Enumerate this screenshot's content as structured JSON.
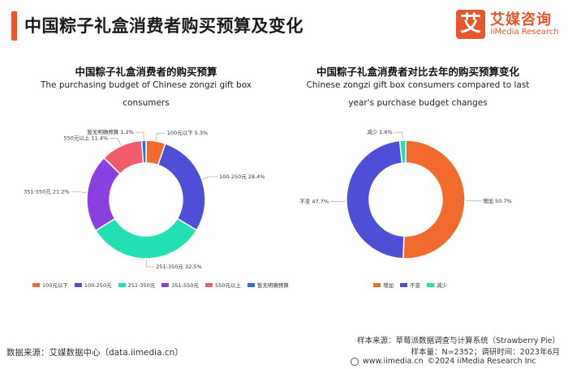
{
  "header": {
    "title": "中国粽子礼盒消费者购买预算及变化",
    "logo_glyph": "艾",
    "logo_cn": "艾媒咨询",
    "logo_en": "iiMedia Research",
    "accent": "#e8562a"
  },
  "chart_data": [
    {
      "type": "pie",
      "donut": true,
      "title": "中国粽子礼盒消费者的购买预算",
      "subtitle": "The purchasing budget of Chinese zongzi gift box consumers",
      "legend_position": "bottom",
      "slices": [
        {
          "label": "100元以下",
          "value": 5.3,
          "text": "100元以下 5.3%",
          "color": "#f26b2d"
        },
        {
          "label": "100-250元",
          "value": 28.4,
          "text": "100-250元 28.4%",
          "color": "#4e4fd6"
        },
        {
          "label": "251-350元",
          "value": 32.5,
          "text": "251-350元 32.5%",
          "color": "#23e0b4"
        },
        {
          "label": "351-550元",
          "value": 21.2,
          "text": "351-550元 21.2%",
          "color": "#8a3fe0"
        },
        {
          "label": "550元以上",
          "value": 11.4,
          "text": "550元以上 11.4%",
          "color": "#f25b6a"
        },
        {
          "label": "暂无明确预算",
          "value": 1.2,
          "text": "暂无明确预算 1.2%",
          "color": "#2f6fd6"
        }
      ]
    },
    {
      "type": "pie",
      "donut": true,
      "title": "中国粽子礼盒消费者对比去年的购买预算变化",
      "subtitle": "Chinese zongzi gift box consumers compared to last year's purchase budget changes",
      "legend_position": "bottom",
      "slices": [
        {
          "label": "增加",
          "value": 50.7,
          "text": "增加 50.7%",
          "color": "#f26b2d"
        },
        {
          "label": "不变",
          "value": 47.7,
          "text": "不变 47.7%",
          "color": "#4e4fd6"
        },
        {
          "label": "减少",
          "value": 1.6,
          "text": "减少 1.6%",
          "color": "#23e0b4"
        }
      ]
    }
  ],
  "footer": {
    "source": "数据来源：艾媒数据中心（data.iimedia.cn）",
    "sample_source": "样本来源：草莓派数据调查与计算系统（Strawberry Pie）",
    "sample_info": "样本量：N=2352；调研时间：2023年6月",
    "website": "www.iimedia.cn",
    "copyright": "©2024  iiMedia Research  Inc"
  }
}
